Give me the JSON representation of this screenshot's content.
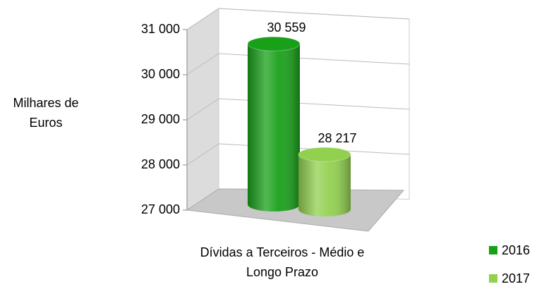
{
  "chart_data": {
    "type": "bar3d",
    "ylabel": "Milhares de Euros",
    "categories": [
      "Dívidas a Terceiros - Médio e Longo Prazo"
    ],
    "series": [
      {
        "name": "2016",
        "color": "#19a019",
        "values": [
          30559
        ],
        "value_labels": [
          "30 559"
        ]
      },
      {
        "name": "2017",
        "color": "#92d050",
        "values": [
          28217
        ],
        "value_labels": [
          "28 217"
        ]
      }
    ],
    "ylim": [
      27000,
      31000
    ],
    "yticks": [
      {
        "value": 27000,
        "label": "27 000"
      },
      {
        "value": 28000,
        "label": "28 000"
      },
      {
        "value": 29000,
        "label": "29 000"
      },
      {
        "value": 30000,
        "label": "30 000"
      },
      {
        "value": 31000,
        "label": "31 000"
      }
    ],
    "grid": true,
    "legend": "bottom-right"
  }
}
